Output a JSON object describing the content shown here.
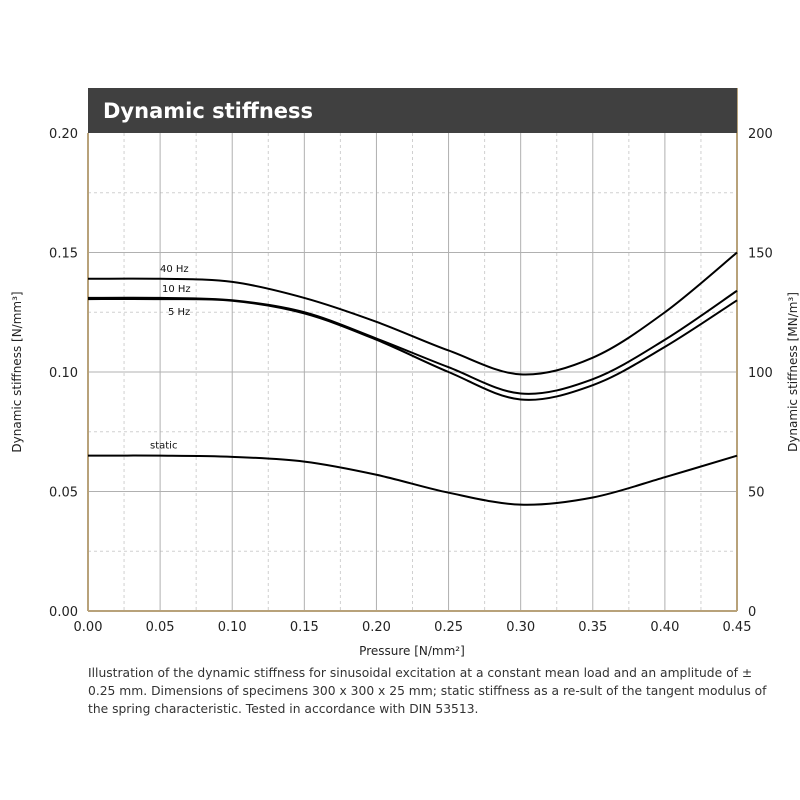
{
  "chart_data": {
    "type": "line",
    "title": "Dynamic stiffness",
    "xlabel": "Pressure [N/mm²]",
    "ylabel": "Dynamic stiffness  [N/mm³]",
    "y2label": "Dynamic stiffness  [MN/m³]",
    "xlim": [
      0,
      0.45
    ],
    "ylim": [
      0,
      0.2
    ],
    "y2lim": [
      0,
      200
    ],
    "xticks": [
      "0.00",
      "0.05",
      "0.10",
      "0.15",
      "0.20",
      "0.25",
      "0.30",
      "0.35",
      "0.40",
      "0.45"
    ],
    "yticks": [
      "0.00",
      "0.05",
      "0.10",
      "0.15",
      "0.20"
    ],
    "y2ticks": [
      "0",
      "50",
      "100",
      "150",
      "200"
    ],
    "grid": true,
    "x": [
      0,
      0.05,
      0.1,
      0.15,
      0.2,
      0.25,
      0.3,
      0.35,
      0.4,
      0.45
    ],
    "series": [
      {
        "name": "40 Hz",
        "values": [
          0.139,
          0.139,
          0.1377,
          0.131,
          0.121,
          0.109,
          0.099,
          0.106,
          0.125,
          0.15
        ]
      },
      {
        "name": "10 Hz",
        "values": [
          0.131,
          0.131,
          0.13,
          0.125,
          0.114,
          0.102,
          0.091,
          0.097,
          0.1135,
          0.134
        ]
      },
      {
        "name": "5 Hz",
        "values": [
          0.1305,
          0.1305,
          0.1298,
          0.1245,
          0.1135,
          0.1,
          0.0885,
          0.0945,
          0.1105,
          0.13
        ]
      },
      {
        "name": "static",
        "values": [
          0.065,
          0.065,
          0.0645,
          0.0625,
          0.057,
          0.0495,
          0.0445,
          0.0475,
          0.056,
          0.065
        ]
      }
    ]
  },
  "caption": "Illustration of the dynamic stiffness for sinusoidal excitation at a constant mean load and an amplitude of ± 0.25 mm.  Dimensions of specimens 300 x 300 x 25 mm; static stiffness as a re-sult of the tangent   modulus of the  spring characteristic. Tested in accordance with DIN 53513.",
  "colors": {
    "header": "#404040",
    "frame": "#b8a27a",
    "line": "#000000",
    "grid": "#b0b0b0"
  }
}
